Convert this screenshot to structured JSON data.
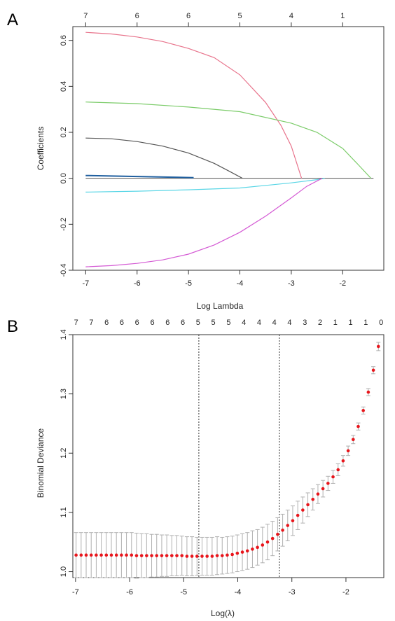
{
  "panels": {
    "a": {
      "label": "A",
      "chart_data": {
        "type": "line",
        "xlabel": "Log Lambda",
        "ylabel": "Coefficients",
        "xlim": [
          -7.25,
          -1.2
        ],
        "ylim": [
          -0.4,
          0.66
        ],
        "x_ticks": [
          -7,
          -6,
          -5,
          -4,
          -3,
          -2
        ],
        "y_ticks": [
          -0.4,
          -0.2,
          0.0,
          0.2,
          0.4,
          0.6
        ],
        "top_axis": {
          "positions": [
            -7,
            -6,
            -5,
            -4,
            -3,
            -2
          ],
          "labels": [
            "7",
            "6",
            "6",
            "5",
            "4",
            "1"
          ]
        },
        "series": [
          {
            "color": "#e8748c",
            "points": [
              [
                -7,
                0.635
              ],
              [
                -6.5,
                0.628
              ],
              [
                -6,
                0.615
              ],
              [
                -5.5,
                0.595
              ],
              [
                -5,
                0.565
              ],
              [
                -4.5,
                0.525
              ],
              [
                -4,
                0.45
              ],
              [
                -3.5,
                0.33
              ],
              [
                -3.2,
                0.23
              ],
              [
                -3,
                0.14
              ],
              [
                -2.8,
                0.0
              ]
            ]
          },
          {
            "color": "#7ccc6a",
            "points": [
              [
                -7,
                0.332
              ],
              [
                -6,
                0.325
              ],
              [
                -5,
                0.31
              ],
              [
                -4,
                0.29
              ],
              [
                -3,
                0.24
              ],
              [
                -2.5,
                0.2
              ],
              [
                -2,
                0.13
              ],
              [
                -1.7,
                0.06
              ],
              [
                -1.45,
                0.0
              ]
            ]
          },
          {
            "color": "#555555",
            "points": [
              [
                -7,
                0.175
              ],
              [
                -6.5,
                0.172
              ],
              [
                -6,
                0.16
              ],
              [
                -5.5,
                0.14
              ],
              [
                -5,
                0.11
              ],
              [
                -4.5,
                0.065
              ],
              [
                -4.2,
                0.03
              ],
              [
                -3.95,
                0.0
              ]
            ]
          },
          {
            "color": "#1f5f9f",
            "points": [
              [
                -7,
                0.012
              ],
              [
                -6,
                0.008
              ],
              [
                -5.4,
                0.005
              ],
              [
                -4.9,
                0.003
              ]
            ]
          },
          {
            "color": "#5ad6e6",
            "points": [
              [
                -7,
                -0.06
              ],
              [
                -6,
                -0.056
              ],
              [
                -5,
                -0.05
              ],
              [
                -4,
                -0.042
              ],
              [
                -3,
                -0.02
              ],
              [
                -2.5,
                -0.006
              ],
              [
                -2.35,
                0.0
              ]
            ]
          },
          {
            "color": "#d45ad4",
            "points": [
              [
                -7,
                -0.385
              ],
              [
                -6.5,
                -0.38
              ],
              [
                -6,
                -0.37
              ],
              [
                -5.5,
                -0.355
              ],
              [
                -5,
                -0.33
              ],
              [
                -4.5,
                -0.29
              ],
              [
                -4,
                -0.235
              ],
              [
                -3.5,
                -0.165
              ],
              [
                -3,
                -0.085
              ],
              [
                -2.7,
                -0.035
              ],
              [
                -2.4,
                0.0
              ]
            ]
          }
        ]
      }
    },
    "b": {
      "label": "B",
      "chart_data": {
        "type": "scatter",
        "xlabel": "Log(λ)",
        "ylabel": "Binomial Deviance",
        "xlim": [
          -7.05,
          -1.3
        ],
        "ylim": [
          0.99,
          1.4
        ],
        "x_ticks": [
          -7,
          -6,
          -5,
          -4,
          -3,
          -2
        ],
        "y_ticks": [
          1.0,
          1.1,
          1.2,
          1.3,
          1.4
        ],
        "vlines": [
          -4.72,
          -3.23
        ],
        "top_axis": {
          "labels": [
            "7",
            "7",
            "6",
            "6",
            "6",
            "6",
            "6",
            "6",
            "5",
            "5",
            "5",
            "4",
            "4",
            "4",
            "4",
            "3",
            "2",
            "1",
            "1",
            "1",
            "0"
          ],
          "start": -6.99,
          "end": -1.35
        },
        "points": {
          "x_start": -6.99,
          "x_end": -1.4,
          "y": [
            1.028,
            1.028,
            1.028,
            1.028,
            1.028,
            1.028,
            1.028,
            1.028,
            1.028,
            1.028,
            1.028,
            1.028,
            1.027,
            1.027,
            1.027,
            1.027,
            1.027,
            1.027,
            1.027,
            1.027,
            1.027,
            1.027,
            1.026,
            1.026,
            1.026,
            1.026,
            1.026,
            1.026,
            1.027,
            1.027,
            1.028,
            1.029,
            1.031,
            1.033,
            1.035,
            1.038,
            1.041,
            1.045,
            1.05,
            1.056,
            1.063,
            1.07,
            1.078,
            1.086,
            1.095,
            1.104,
            1.113,
            1.122,
            1.131,
            1.14,
            1.149,
            1.16,
            1.172,
            1.187,
            1.204,
            1.223,
            1.245,
            1.272,
            1.303,
            1.34,
            1.38
          ],
          "err": [
            0.038,
            0.038,
            0.038,
            0.038,
            0.038,
            0.038,
            0.038,
            0.038,
            0.038,
            0.038,
            0.038,
            0.038,
            0.038,
            0.037,
            0.037,
            0.036,
            0.036,
            0.035,
            0.035,
            0.034,
            0.034,
            0.033,
            0.033,
            0.033,
            0.032,
            0.032,
            0.032,
            0.032,
            0.032,
            0.031,
            0.031,
            0.031,
            0.031,
            0.031,
            0.031,
            0.031,
            0.03,
            0.03,
            0.03,
            0.029,
            0.028,
            0.027,
            0.026,
            0.025,
            0.024,
            0.022,
            0.02,
            0.018,
            0.016,
            0.014,
            0.012,
            0.011,
            0.01,
            0.009,
            0.008,
            0.007,
            0.006,
            0.006,
            0.006,
            0.006,
            0.007
          ]
        },
        "point_color": "#e8151b",
        "errorbar_color": "#b0b0b0"
      }
    }
  }
}
